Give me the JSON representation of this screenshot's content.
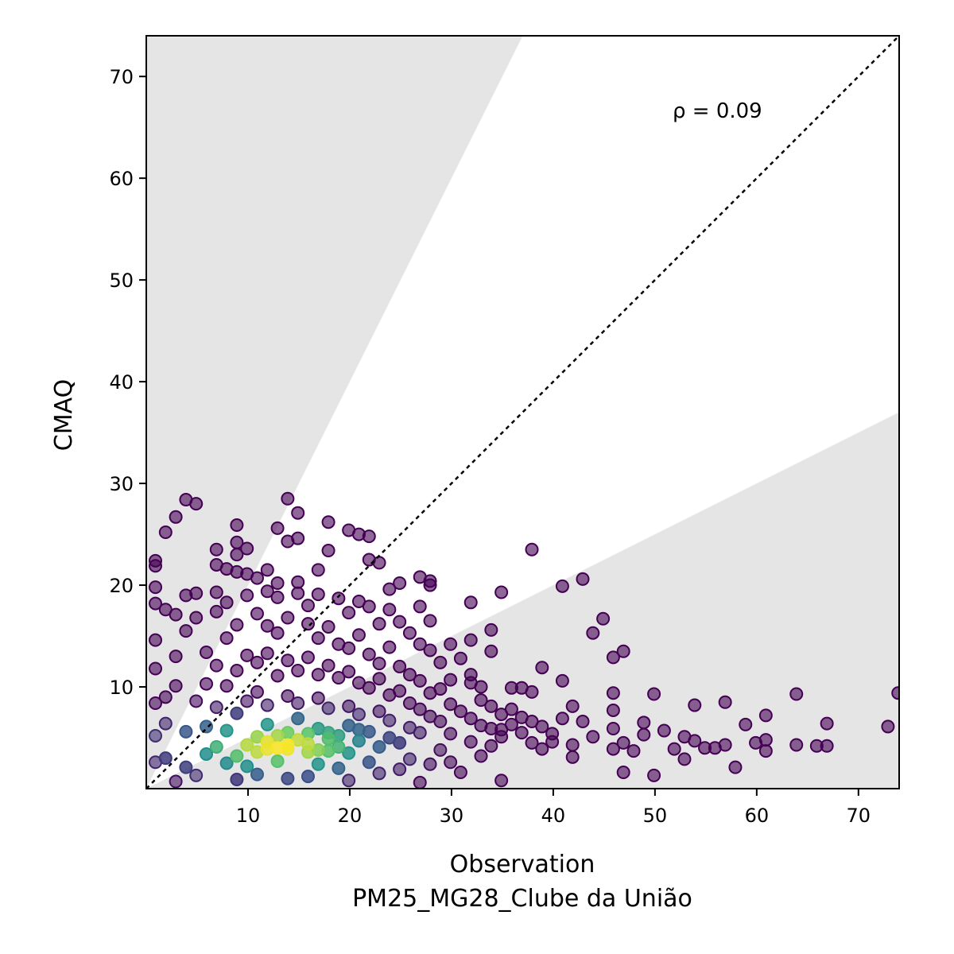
{
  "chart_data": {
    "type": "scatter",
    "title": "",
    "xlabel": "Observation",
    "xlabel_sub": "PM25_MG28_Clube da União",
    "ylabel": "CMAQ",
    "annotation": "ρ = 0.09",
    "xlim": [
      0,
      74
    ],
    "ylim": [
      0,
      74
    ],
    "x_ticks": [
      10,
      20,
      30,
      40,
      50,
      60,
      70
    ],
    "y_ticks": [
      10,
      20,
      30,
      40,
      50,
      60,
      70
    ],
    "reference_line": "1:1",
    "shaded_regions": "outside factor-of-2 band (y > 2x and y < x/2)",
    "colormap": "viridis (point density)",
    "colors": {
      "low_density": "#440154",
      "mid_density": "#31688e",
      "high_density": "#35b779",
      "peak_density": "#fde725",
      "shade": "#e5e5e5"
    },
    "points": [
      [
        3.9,
        28.4
      ],
      [
        4.9,
        28.0
      ],
      [
        13.9,
        28.5
      ],
      [
        14.9,
        27.1
      ],
      [
        2.9,
        26.7
      ],
      [
        8.9,
        25.9
      ],
      [
        12.9,
        25.6
      ],
      [
        17.9,
        26.2
      ],
      [
        19.9,
        25.4
      ],
      [
        20.9,
        25.0
      ],
      [
        21.9,
        24.8
      ],
      [
        1.9,
        25.2
      ],
      [
        14.9,
        24.6
      ],
      [
        13.9,
        24.3
      ],
      [
        8.9,
        24.2
      ],
      [
        9.9,
        23.6
      ],
      [
        6.9,
        23.5
      ],
      [
        8.9,
        23.0
      ],
      [
        17.9,
        23.4
      ],
      [
        37.9,
        23.5
      ],
      [
        0.9,
        22.4
      ],
      [
        0.9,
        21.9
      ],
      [
        6.9,
        22.0
      ],
      [
        7.9,
        21.6
      ],
      [
        8.9,
        21.3
      ],
      [
        9.9,
        21.1
      ],
      [
        11.9,
        21.5
      ],
      [
        16.9,
        21.5
      ],
      [
        21.9,
        22.5
      ],
      [
        22.9,
        22.2
      ],
      [
        10.9,
        20.7
      ],
      [
        12.9,
        20.2
      ],
      [
        14.9,
        20.3
      ],
      [
        24.9,
        20.2
      ],
      [
        26.9,
        20.8
      ],
      [
        27.9,
        20.4
      ],
      [
        0.9,
        19.8
      ],
      [
        3.9,
        19.0
      ],
      [
        4.9,
        19.2
      ],
      [
        6.9,
        19.3
      ],
      [
        23.9,
        19.6
      ],
      [
        27.9,
        20.0
      ],
      [
        34.9,
        19.3
      ],
      [
        40.9,
        19.9
      ],
      [
        42.9,
        20.6
      ],
      [
        0.9,
        18.2
      ],
      [
        31.9,
        18.3
      ],
      [
        26.9,
        17.9
      ],
      [
        1.9,
        17.6
      ],
      [
        2.9,
        17.1
      ],
      [
        44.9,
        16.7
      ],
      [
        27.9,
        16.5
      ],
      [
        43.9,
        15.3
      ],
      [
        33.9,
        15.6
      ],
      [
        29.9,
        14.2
      ],
      [
        31.9,
        14.6
      ],
      [
        33.9,
        13.5
      ],
      [
        46.9,
        13.5
      ],
      [
        45.9,
        12.9
      ],
      [
        38.9,
        11.9
      ],
      [
        31.9,
        11.2
      ],
      [
        29.9,
        10.7
      ],
      [
        40.9,
        10.6
      ],
      [
        32.9,
        10.0
      ],
      [
        35.9,
        9.9
      ],
      [
        36.9,
        9.9
      ],
      [
        37.9,
        9.5
      ],
      [
        49.9,
        9.3
      ],
      [
        45.9,
        9.4
      ],
      [
        63.9,
        9.3
      ],
      [
        73.9,
        9.4
      ],
      [
        56.9,
        8.5
      ],
      [
        53.9,
        8.2
      ],
      [
        41.9,
        8.1
      ],
      [
        45.9,
        7.7
      ],
      [
        60.9,
        7.2
      ],
      [
        48.9,
        6.5
      ],
      [
        42.9,
        6.6
      ],
      [
        66.9,
        6.4
      ],
      [
        58.9,
        6.3
      ],
      [
        72.9,
        6.1
      ],
      [
        50.9,
        5.7
      ],
      [
        45.9,
        5.9
      ],
      [
        52.9,
        5.1
      ],
      [
        48.9,
        5.3
      ],
      [
        43.9,
        5.1
      ],
      [
        53.9,
        4.7
      ],
      [
        56.9,
        4.3
      ],
      [
        51.9,
        3.9
      ],
      [
        54.9,
        4.0
      ],
      [
        55.9,
        4.0
      ],
      [
        59.9,
        4.5
      ],
      [
        60.9,
        4.8
      ],
      [
        63.9,
        4.3
      ],
      [
        65.9,
        4.2
      ],
      [
        66.9,
        4.2
      ],
      [
        41.9,
        4.3
      ],
      [
        45.9,
        3.9
      ],
      [
        47.9,
        3.7
      ],
      [
        46.9,
        4.5
      ],
      [
        60.9,
        3.7
      ],
      [
        52.9,
        2.9
      ],
      [
        57.9,
        2.1
      ],
      [
        46.9,
        1.6
      ],
      [
        49.9,
        1.3
      ],
      [
        41.9,
        3.1
      ],
      [
        39.9,
        4.6
      ],
      [
        38.9,
        3.9
      ],
      [
        37.9,
        4.5
      ],
      [
        36.9,
        5.5
      ],
      [
        35.9,
        6.3
      ],
      [
        34.9,
        5.8
      ],
      [
        33.9,
        4.2
      ],
      [
        32.9,
        3.2
      ],
      [
        34.9,
        0.8
      ],
      [
        30.9,
        1.6
      ],
      [
        27.9,
        2.4
      ],
      [
        24.9,
        1.9
      ],
      [
        22.9,
        1.5
      ],
      [
        26.9,
        0.6
      ],
      [
        19.9,
        0.8
      ],
      [
        15.9,
        1.2
      ],
      [
        13.9,
        1.0
      ],
      [
        10.9,
        1.4
      ],
      [
        8.9,
        0.9
      ],
      [
        4.9,
        1.3
      ],
      [
        2.9,
        0.7
      ],
      [
        0.9,
        5.2
      ],
      [
        1.9,
        9.0
      ],
      [
        2.9,
        13.0
      ],
      [
        3.9,
        15.5
      ],
      [
        4.9,
        16.8
      ],
      [
        5.9,
        13.4
      ],
      [
        6.9,
        17.4
      ],
      [
        7.9,
        18.3
      ],
      [
        9.9,
        19.0
      ],
      [
        11.9,
        19.4
      ],
      [
        12.9,
        18.8
      ],
      [
        14.9,
        19.2
      ],
      [
        15.9,
        18.0
      ],
      [
        16.9,
        19.1
      ],
      [
        18.9,
        18.7
      ],
      [
        19.9,
        17.3
      ],
      [
        20.9,
        18.4
      ],
      [
        21.9,
        17.9
      ],
      [
        22.9,
        16.2
      ],
      [
        23.9,
        17.6
      ],
      [
        24.9,
        16.4
      ],
      [
        25.9,
        15.3
      ],
      [
        26.9,
        14.2
      ],
      [
        27.9,
        13.6
      ],
      [
        28.9,
        12.4
      ],
      [
        30.9,
        12.8
      ],
      [
        31.9,
        10.4
      ],
      [
        32.9,
        8.7
      ],
      [
        33.9,
        8.1
      ],
      [
        34.9,
        7.3
      ],
      [
        35.9,
        7.8
      ],
      [
        36.9,
        7.0
      ],
      [
        37.9,
        6.6
      ],
      [
        38.9,
        6.1
      ],
      [
        39.9,
        5.4
      ],
      [
        40.9,
        6.9
      ],
      [
        1.9,
        3.0
      ],
      [
        3.9,
        5.6
      ],
      [
        4.9,
        8.6
      ],
      [
        5.9,
        10.3
      ],
      [
        6.9,
        12.1
      ],
      [
        7.9,
        14.8
      ],
      [
        8.9,
        16.1
      ],
      [
        10.9,
        17.2
      ],
      [
        11.9,
        16.0
      ],
      [
        12.9,
        15.3
      ],
      [
        13.9,
        16.8
      ],
      [
        15.9,
        16.2
      ],
      [
        16.9,
        14.8
      ],
      [
        17.9,
        15.9
      ],
      [
        18.9,
        14.2
      ],
      [
        19.9,
        13.8
      ],
      [
        20.9,
        15.1
      ],
      [
        21.9,
        13.2
      ],
      [
        22.9,
        12.3
      ],
      [
        23.9,
        13.9
      ],
      [
        24.9,
        12.0
      ],
      [
        25.9,
        11.2
      ],
      [
        26.9,
        10.6
      ],
      [
        27.9,
        9.4
      ],
      [
        28.9,
        9.8
      ],
      [
        29.9,
        8.3
      ],
      [
        30.9,
        7.6
      ],
      [
        31.9,
        6.9
      ],
      [
        32.9,
        6.2
      ],
      [
        33.9,
        5.9
      ],
      [
        34.9,
        5.1
      ],
      [
        29.9,
        5.4
      ],
      [
        31.9,
        4.6
      ],
      [
        28.9,
        3.8
      ],
      [
        0.9,
        2.6
      ],
      [
        0.9,
        8.4
      ],
      [
        0.9,
        11.8
      ],
      [
        0.9,
        14.6
      ],
      [
        1.9,
        6.4
      ],
      [
        2.9,
        10.1
      ],
      [
        3.9,
        2.1
      ],
      [
        5.9,
        3.4
      ],
      [
        7.9,
        2.5
      ],
      [
        9.9,
        2.2
      ],
      [
        12.9,
        2.7
      ],
      [
        16.9,
        2.4
      ],
      [
        18.9,
        2.0
      ],
      [
        21.9,
        2.6
      ],
      [
        25.9,
        2.9
      ],
      [
        29.9,
        2.6
      ],
      [
        5.9,
        6.1
      ],
      [
        6.9,
        8.0
      ],
      [
        7.9,
        10.1
      ],
      [
        8.9,
        11.6
      ],
      [
        9.9,
        13.1
      ],
      [
        10.9,
        12.4
      ],
      [
        11.9,
        13.3
      ],
      [
        12.9,
        11.1
      ],
      [
        13.9,
        12.6
      ],
      [
        14.9,
        11.6
      ],
      [
        15.9,
        12.9
      ],
      [
        16.9,
        11.2
      ],
      [
        17.9,
        12.1
      ],
      [
        18.9,
        10.9
      ],
      [
        19.9,
        11.5
      ],
      [
        20.9,
        10.4
      ],
      [
        21.9,
        9.9
      ],
      [
        22.9,
        10.8
      ],
      [
        23.9,
        9.2
      ],
      [
        24.9,
        9.6
      ],
      [
        25.9,
        8.4
      ],
      [
        26.9,
        7.8
      ],
      [
        27.9,
        7.1
      ],
      [
        28.9,
        6.6
      ],
      [
        6.9,
        4.1
      ],
      [
        7.9,
        5.7
      ],
      [
        8.9,
        7.4
      ],
      [
        9.9,
        8.6
      ],
      [
        10.9,
        9.5
      ],
      [
        11.9,
        8.2
      ],
      [
        13.9,
        9.1
      ],
      [
        14.9,
        8.4
      ],
      [
        16.9,
        8.9
      ],
      [
        17.9,
        7.9
      ],
      [
        19.9,
        8.1
      ],
      [
        20.9,
        7.3
      ],
      [
        22.9,
        7.6
      ],
      [
        23.9,
        6.7
      ],
      [
        25.9,
        6.0
      ],
      [
        26.9,
        5.5
      ],
      [
        8.9,
        3.2
      ],
      [
        10.9,
        5.1
      ],
      [
        11.9,
        6.3
      ],
      [
        12.9,
        4.0
      ],
      [
        13.9,
        5.5
      ],
      [
        14.9,
        6.9
      ],
      [
        15.9,
        4.4
      ],
      [
        16.9,
        5.9
      ],
      [
        17.9,
        3.7
      ],
      [
        18.9,
        5.2
      ],
      [
        19.9,
        6.2
      ],
      [
        20.9,
        4.7
      ],
      [
        21.9,
        5.6
      ],
      [
        22.9,
        4.1
      ],
      [
        23.9,
        5.0
      ],
      [
        24.9,
        4.5
      ],
      [
        9.9,
        4.3
      ],
      [
        10.9,
        3.6
      ],
      [
        11.9,
        4.6
      ],
      [
        12.9,
        5.2
      ],
      [
        13.9,
        3.9
      ],
      [
        14.9,
        4.8
      ],
      [
        15.9,
        5.4
      ],
      [
        16.9,
        3.8
      ],
      [
        17.9,
        4.9
      ],
      [
        18.9,
        4.1
      ],
      [
        19.9,
        3.5
      ],
      [
        20.9,
        5.8
      ],
      [
        11.9,
        3.9
      ],
      [
        13.9,
        4.3
      ],
      [
        15.9,
        3.6
      ],
      [
        17.9,
        5.5
      ]
    ]
  }
}
